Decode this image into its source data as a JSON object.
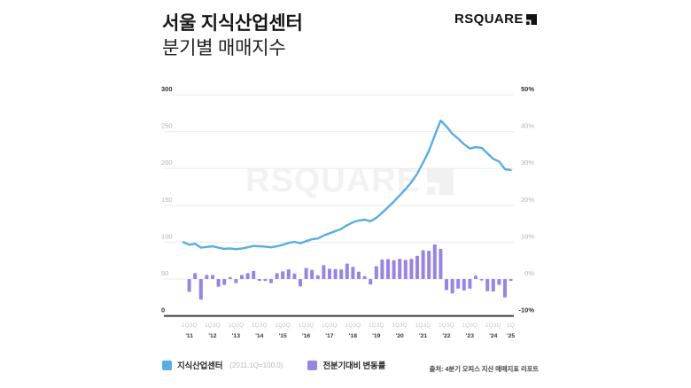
{
  "header": {
    "title_line1": "서울 지식산업센터",
    "title_line2": "분기별 매매지수",
    "logo_text": "RSQUARE"
  },
  "watermark": {
    "text": "RSQUARE"
  },
  "legend": {
    "series1_label": "지식산업센터",
    "series1_note": "(2011.1Q=100.0)",
    "series2_label": "전분기대비 변동률"
  },
  "source": {
    "text": "출처: 4분기 오피스 지산 매매지표 리포트"
  },
  "colors": {
    "line_blue": "#55AEE5",
    "bar_purple": "#9883E8",
    "grid": "#ebebeb",
    "axis_dark_label": "#2e2e32",
    "axis_light_label": "#b2b2b8",
    "baseline": "#3f3f44",
    "quarter_tick": "#c2c2c6",
    "year_tick": "#39393d"
  },
  "chart_data": {
    "type": "line+bar",
    "title": "서울 지식산업센터 분기별 매매지수",
    "left_axis": {
      "labels": [
        "300",
        "250",
        "200",
        "150",
        "100",
        "50",
        "0"
      ],
      "min": 0,
      "max": 300
    },
    "right_axis": {
      "labels": [
        "50%",
        "40%",
        "30%",
        "20%",
        "10%",
        "0%",
        "-10%"
      ],
      "min": -10,
      "max": 50
    },
    "x_axis": {
      "quarter_tick_labels": [
        "1Q3Q",
        "1Q3Q",
        "1Q3Q",
        "1Q3Q",
        "1Q3Q",
        "1Q3Q",
        "1Q3Q",
        "1Q3Q",
        "1Q3Q",
        "1Q3Q",
        "1Q3Q",
        "1Q3Q",
        "1Q3Q",
        "1Q3Q",
        "1Q"
      ],
      "year_labels": [
        "'11",
        "'12",
        "'13",
        "'14",
        "'15",
        "'16",
        "'17",
        "'18",
        "'19",
        "'20",
        "'21",
        "'22",
        "'23",
        "'24",
        "'25"
      ]
    },
    "quarters": [
      "2011Q1",
      "2011Q2",
      "2011Q3",
      "2011Q4",
      "2012Q1",
      "2012Q2",
      "2012Q3",
      "2012Q4",
      "2013Q1",
      "2013Q2",
      "2013Q3",
      "2013Q4",
      "2014Q1",
      "2014Q2",
      "2014Q3",
      "2014Q4",
      "2015Q1",
      "2015Q2",
      "2015Q3",
      "2015Q4",
      "2016Q1",
      "2016Q2",
      "2016Q3",
      "2016Q4",
      "2017Q1",
      "2017Q2",
      "2017Q3",
      "2017Q4",
      "2018Q1",
      "2018Q2",
      "2018Q3",
      "2018Q4",
      "2019Q1",
      "2019Q2",
      "2019Q3",
      "2019Q4",
      "2020Q1",
      "2020Q2",
      "2020Q3",
      "2020Q4",
      "2021Q1",
      "2021Q2",
      "2021Q3",
      "2021Q4",
      "2022Q1",
      "2022Q2",
      "2022Q3",
      "2022Q4",
      "2023Q1",
      "2023Q2",
      "2023Q3",
      "2023Q4",
      "2024Q1",
      "2024Q2",
      "2024Q3",
      "2024Q4",
      "2025Q1"
    ],
    "series": [
      {
        "name": "지식산업센터",
        "type": "line",
        "axis": "left",
        "color": "#55AEE5",
        "values": [
          100.0,
          96.5,
          98.0,
          92.5,
          93.5,
          94.5,
          92.5,
          91.0,
          91.5,
          90.5,
          91.5,
          93.0,
          95.0,
          94.5,
          94.0,
          93.0,
          94.5,
          96.5,
          99.0,
          100.5,
          98.5,
          101.5,
          104.0,
          105.0,
          109.0,
          112.0,
          115.0,
          118.0,
          123.0,
          127.0,
          129.5,
          130.5,
          128.5,
          133.0,
          140.0,
          147.5,
          155.0,
          163.5,
          172.0,
          181.5,
          193.0,
          208.0,
          224.0,
          245.0,
          265.0,
          257.0,
          247.0,
          240.5,
          233.0,
          227.0,
          229.0,
          228.0,
          220.5,
          213.0,
          209.5,
          199.0,
          198.0
        ]
      },
      {
        "name": "전분기대비 변동률",
        "type": "bar",
        "axis": "right",
        "unit": "%",
        "color": "#9883E8",
        "values": [
          null,
          -3.5,
          1.6,
          -5.6,
          1.1,
          1.1,
          -2.1,
          -1.6,
          0.5,
          -1.1,
          1.1,
          1.6,
          2.2,
          -0.5,
          -0.5,
          -1.1,
          1.6,
          2.1,
          2.6,
          1.5,
          -2.0,
          3.0,
          2.5,
          1.0,
          3.8,
          2.8,
          2.7,
          2.6,
          4.2,
          3.3,
          2.0,
          0.8,
          -1.5,
          3.5,
          5.3,
          5.4,
          5.1,
          5.5,
          5.2,
          5.5,
          6.3,
          7.8,
          7.7,
          9.4,
          8.2,
          -3.0,
          -3.9,
          -2.6,
          -3.1,
          -2.6,
          0.9,
          -0.4,
          -3.3,
          -3.4,
          -1.6,
          -5.0,
          -0.5
        ]
      }
    ]
  }
}
